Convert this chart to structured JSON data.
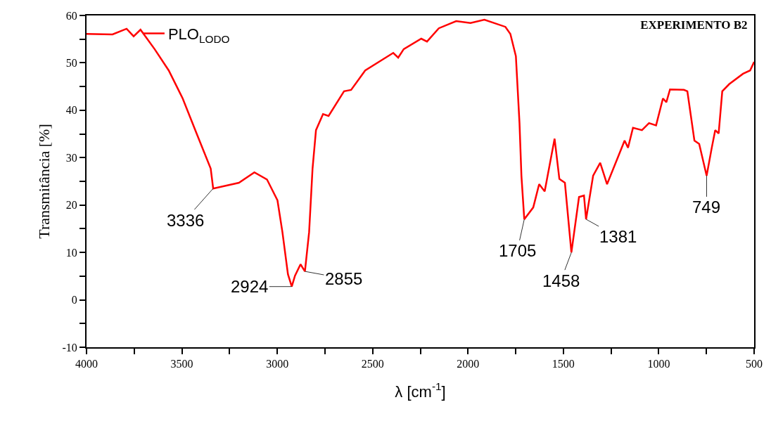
{
  "chart_data": {
    "type": "line",
    "title": "EXPERIMENTO B2",
    "xlabel": "λ [cm$^{-1}$]",
    "ylabel": "Transmitância [%]",
    "x": [
      4000,
      3864,
      3790,
      3753,
      3717,
      3643,
      3569,
      3496,
      3422,
      3349,
      3336,
      3201,
      3120,
      3054,
      2999,
      2973,
      2944,
      2924,
      2907,
      2878,
      2855,
      2833,
      2815,
      2797,
      2760,
      2731,
      2650,
      2613,
      2539,
      2392,
      2366,
      2337,
      2245,
      2215,
      2153,
      2062,
      1987,
      1914,
      1804,
      1778,
      1749,
      1730,
      1720,
      1705,
      1658,
      1627,
      1598,
      1546,
      1521,
      1492,
      1458,
      1418,
      1392,
      1381,
      1344,
      1307,
      1271,
      1216,
      1179,
      1161,
      1135,
      1088,
      1051,
      1014,
      978,
      960,
      941,
      868,
      850,
      813,
      788,
      749,
      722,
      704,
      686,
      667,
      631,
      558,
      521,
      500
    ],
    "series": [
      {
        "name": "PLO$_{LODO}$",
        "color": "#ff0000",
        "values": [
          56.1,
          56,
          57.2,
          55.6,
          57,
          52.9,
          48.4,
          42.5,
          35,
          27.7,
          23.5,
          24.7,
          26.9,
          25.4,
          21,
          14.3,
          5.4,
          2.8,
          5.1,
          7.5,
          6,
          14.3,
          27.7,
          35.8,
          39.2,
          38.8,
          44,
          44.3,
          48.4,
          52.1,
          51.1,
          52.9,
          55.1,
          54.5,
          57.3,
          58.8,
          58.4,
          59.1,
          57.6,
          56.1,
          51.4,
          37.3,
          26.2,
          17,
          19.5,
          24.4,
          22.9,
          34,
          25.5,
          24.7,
          10,
          21.7,
          22,
          17,
          26.2,
          28.9,
          24.4,
          29.9,
          33.6,
          32.1,
          36.3,
          35.8,
          37.3,
          36.8,
          42.5,
          41.7,
          44.4,
          44.3,
          44,
          33.6,
          32.9,
          26.2,
          32.1,
          35.8,
          35.1,
          44,
          45.5,
          47.7,
          48.4,
          50.2
        ]
      }
    ],
    "xlim": [
      4000,
      500
    ],
    "ylim": [
      -10,
      60
    ],
    "xticks": [
      4000,
      {
        "value": 3750,
        "label": null
      },
      3500,
      {
        "value": 3250,
        "label": null
      },
      3000,
      {
        "value": 2750,
        "label": null
      },
      2500,
      {
        "value": 2250,
        "label": null
      },
      2000,
      {
        "value": 1750,
        "label": null
      },
      1500,
      {
        "value": 1250,
        "label": null
      },
      1000,
      {
        "value": 750,
        "label": null
      },
      500
    ],
    "yticks": [
      -10,
      {
        "value": -5,
        "label": null
      },
      0,
      {
        "value": 5,
        "label": null
      },
      10,
      {
        "value": 15,
        "label": null
      },
      20,
      {
        "value": 25,
        "label": null
      },
      30,
      {
        "value": 35,
        "label": null
      },
      40,
      {
        "value": 45,
        "label": null
      },
      50,
      {
        "value": 55,
        "label": null
      },
      60
    ],
    "annotations": [
      {
        "text": "3336",
        "x": 3336,
        "y": 23.5
      },
      {
        "text": "2924",
        "x": 2924,
        "y": 2.8
      },
      {
        "text": "2855",
        "x": 2855,
        "y": 6
      },
      {
        "text": "1705",
        "x": 1705,
        "y": 17
      },
      {
        "text": "1458",
        "x": 1458,
        "y": 10
      },
      {
        "text": "1381",
        "x": 1381,
        "y": 17
      },
      {
        "text": "749",
        "x": 749,
        "y": 26.2
      }
    ],
    "legend": "top left",
    "marker": "none",
    "line_style": "solid"
  }
}
